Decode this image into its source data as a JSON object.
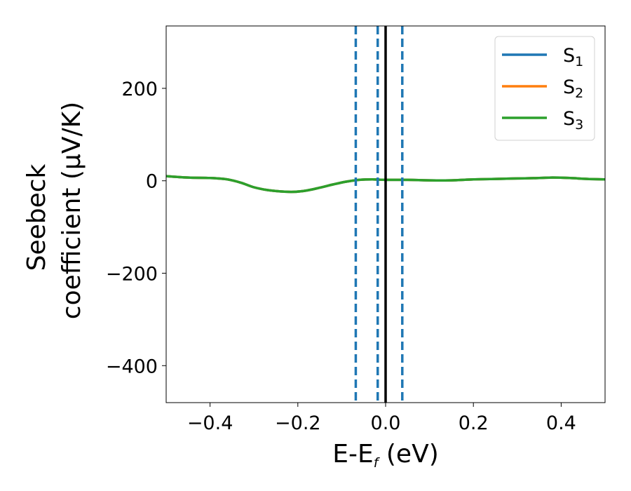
{
  "chart_data": {
    "type": "line",
    "xlabel": {
      "main": "E-E",
      "sub": "f",
      "unit": " (eV)"
    },
    "ylabel": {
      "line1": "Seebeck",
      "line2": "coefficient  (μV/K)"
    },
    "xlim": [
      -0.5,
      0.5
    ],
    "ylim": [
      -480,
      335
    ],
    "xticks": [
      -0.4,
      -0.2,
      0.0,
      0.2,
      0.4
    ],
    "xtick_labels": [
      "−0.4",
      "−0.2",
      "0.0",
      "0.2",
      "0.4"
    ],
    "yticks": [
      200,
      0,
      -200,
      -400
    ],
    "ytick_labels": [
      "200",
      "0",
      "−200",
      "−400"
    ],
    "grid": false,
    "legend_position": "top-right",
    "series": [
      {
        "name": "S",
        "sub": "1",
        "color": "#1f77b4"
      },
      {
        "name": "S",
        "sub": "2",
        "color": "#ff7f0e"
      },
      {
        "name": "S",
        "sub": "3",
        "color": "#2ca02c"
      }
    ],
    "curve": {
      "x": [
        -0.5,
        -0.45,
        -0.4,
        -0.36,
        -0.33,
        -0.3,
        -0.27,
        -0.24,
        -0.21,
        -0.18,
        -0.15,
        -0.12,
        -0.09,
        -0.06,
        -0.03,
        0.0,
        0.05,
        0.1,
        0.15,
        0.2,
        0.25,
        0.3,
        0.35,
        0.38,
        0.42,
        0.46,
        0.5
      ],
      "y": [
        10,
        7,
        6,
        3,
        -4,
        -14,
        -20,
        -23,
        -24,
        -21,
        -15,
        -8,
        -2,
        2,
        3,
        2,
        2,
        1,
        1,
        3,
        4,
        5,
        6,
        7,
        6,
        4,
        3
      ]
    },
    "vlines": [
      {
        "x": -0.068,
        "style": "dashed",
        "color": "#1f77b4"
      },
      {
        "x": -0.018,
        "style": "dashed",
        "color": "#1f77b4"
      },
      {
        "x": 0.038,
        "style": "dashed",
        "color": "#1f77b4"
      },
      {
        "x": 0.0,
        "style": "solid",
        "color": "#000000"
      }
    ]
  }
}
